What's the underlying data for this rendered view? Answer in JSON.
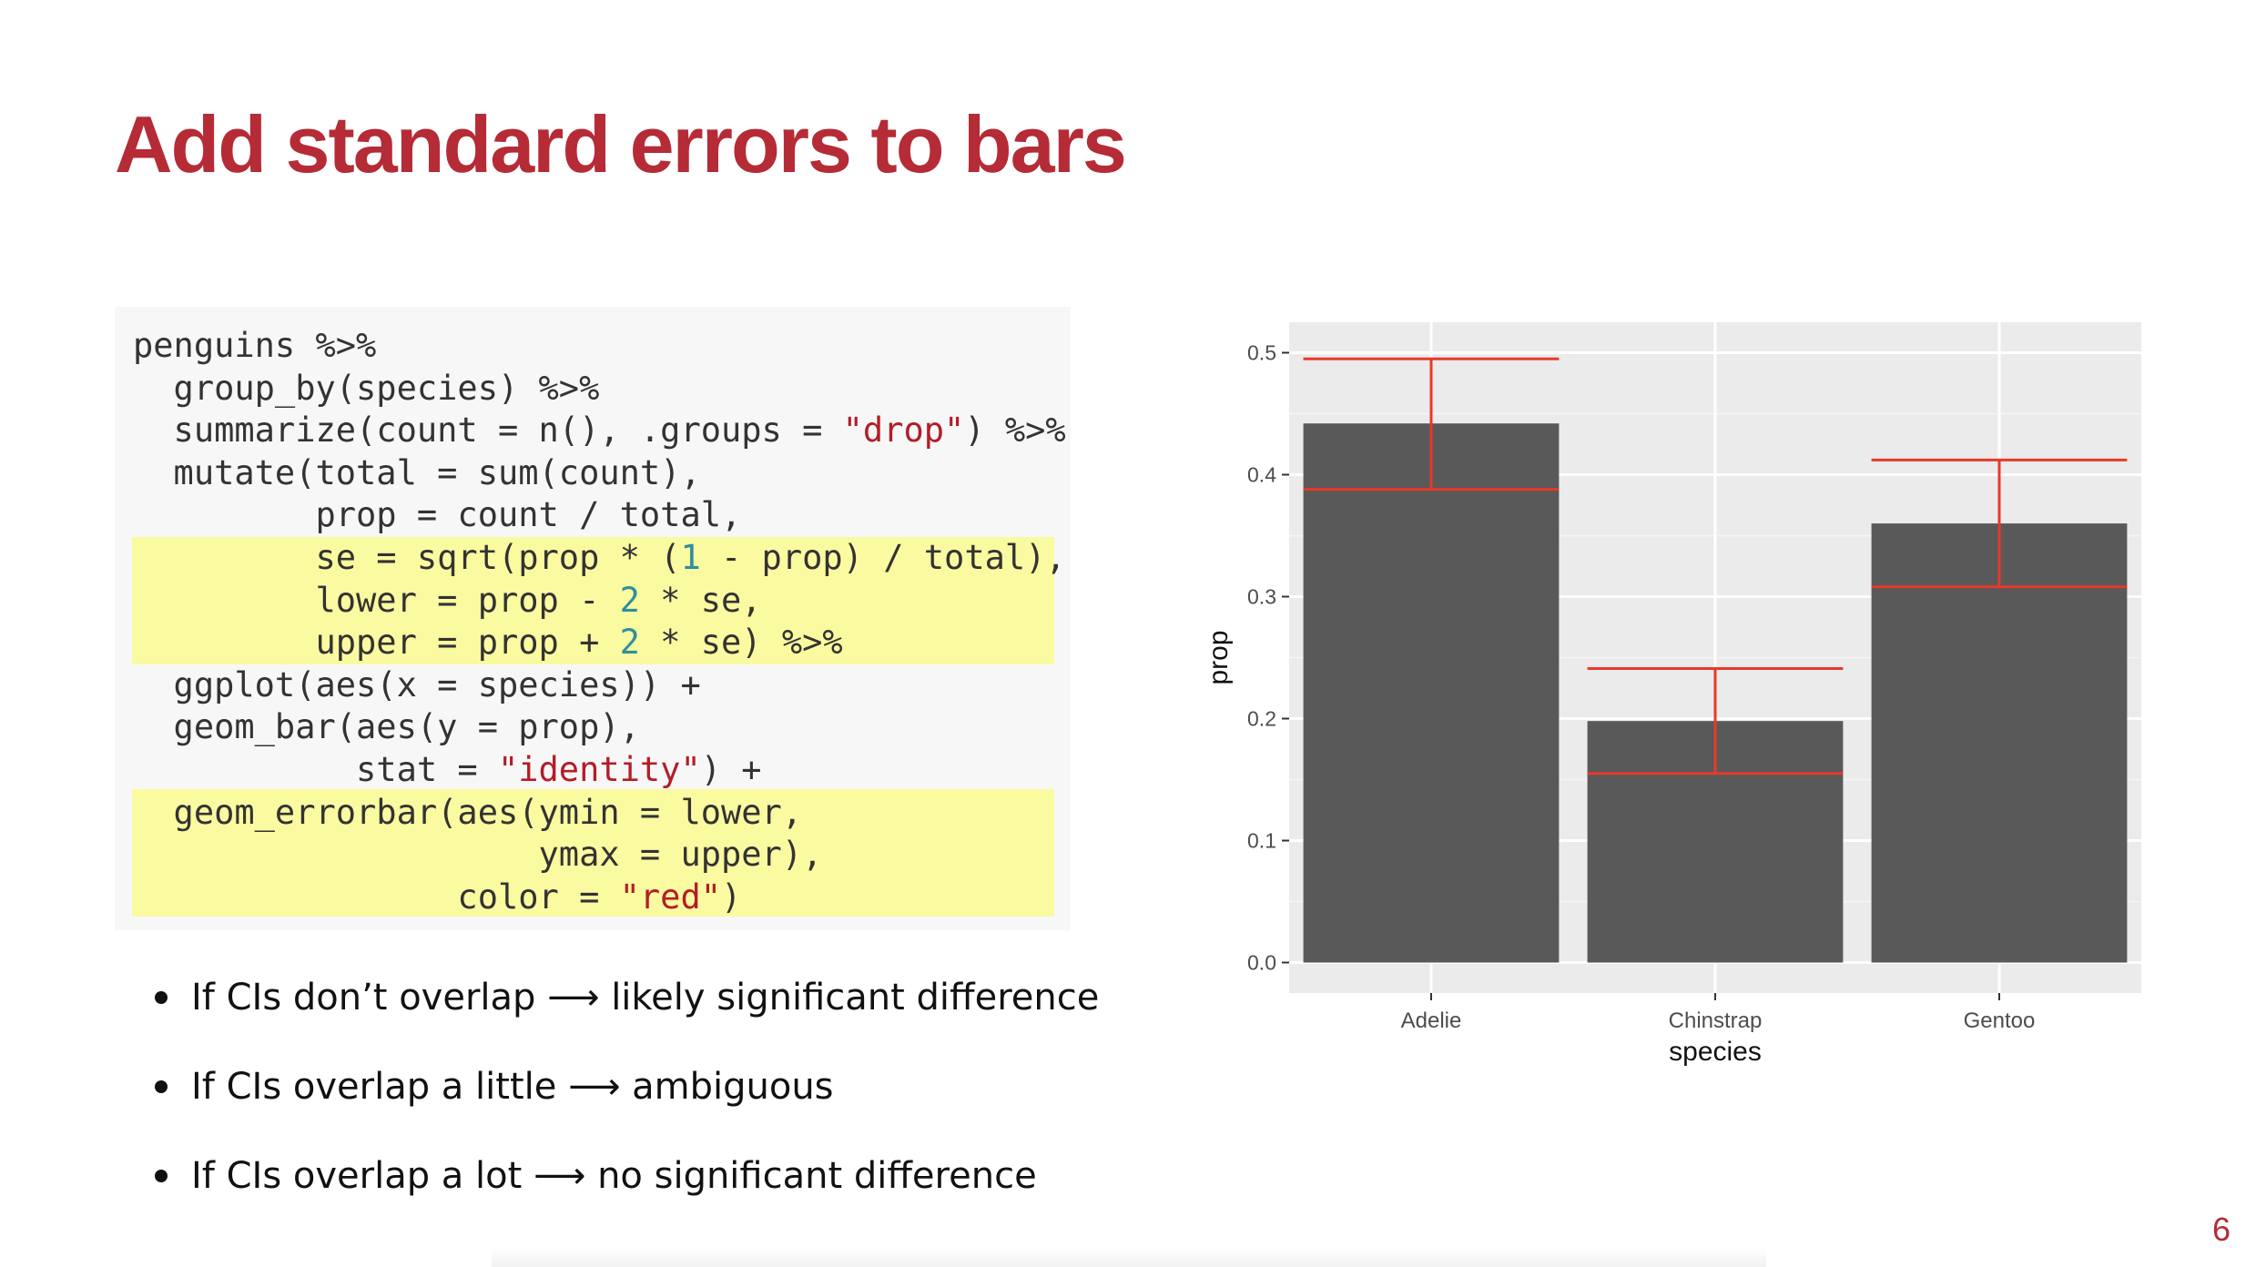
{
  "slide": {
    "title": "Add standard errors to bars",
    "page_number": "6",
    "accent_color": "#b52b36"
  },
  "code": {
    "lines": [
      [
        {
          "t": "penguins %>%"
        }
      ],
      [
        {
          "t": "  group_by(species) %>%"
        }
      ],
      [
        {
          "t": "  summarize(count = n(), .groups = "
        },
        {
          "t": "\"drop\"",
          "k": "str"
        },
        {
          "t": ") %>%"
        }
      ],
      [
        {
          "t": "  mutate(total = sum(count),"
        }
      ],
      [
        {
          "t": "         prop = count / total,"
        }
      ],
      [
        {
          "t": "         se = sqrt(prop * ("
        },
        {
          "t": "1",
          "k": "num"
        },
        {
          "t": " - prop) / total),"
        }
      ],
      [
        {
          "t": "         lower = prop - "
        },
        {
          "t": "2",
          "k": "num"
        },
        {
          "t": " * se,"
        }
      ],
      [
        {
          "t": "         upper = prop + "
        },
        {
          "t": "2",
          "k": "num"
        },
        {
          "t": " * se) %>%"
        }
      ],
      [
        {
          "t": "  ggplot(aes(x = species)) +"
        }
      ],
      [
        {
          "t": "  geom_bar(aes(y = prop),"
        }
      ],
      [
        {
          "t": "           stat = "
        },
        {
          "t": "\"identity\"",
          "k": "str"
        },
        {
          "t": ") +"
        }
      ],
      [
        {
          "t": "  geom_errorbar(aes(ymin = lower,"
        }
      ],
      [
        {
          "t": "                    ymax = upper),"
        }
      ],
      [
        {
          "t": "                color = "
        },
        {
          "t": "\"red\"",
          "k": "str"
        },
        {
          "t": ")"
        }
      ]
    ],
    "highlight_color": "#fafaa0"
  },
  "bullets": [
    "If CIs don’t overlap ⟶ likely significant difference",
    "If CIs overlap a little ⟶ ambiguous",
    "If CIs overlap a lot ⟶ no significant difference"
  ],
  "chart_data": {
    "type": "bar",
    "categories": [
      "Adelie",
      "Chinstrap",
      "Gentoo"
    ],
    "values": [
      0.442,
      0.198,
      0.36
    ],
    "error_bars": {
      "lower": [
        0.388,
        0.155,
        0.308
      ],
      "upper": [
        0.495,
        0.241,
        0.412
      ],
      "color": "#e8392a"
    },
    "xlabel": "species",
    "ylabel": "prop",
    "ylim": [
      0,
      0.5
    ],
    "yticks": [
      "0.0",
      "0.1",
      "0.2",
      "0.3",
      "0.4",
      "0.5"
    ],
    "grid": true,
    "bar_color": "#595959",
    "panel_color": "#ebebeb"
  }
}
